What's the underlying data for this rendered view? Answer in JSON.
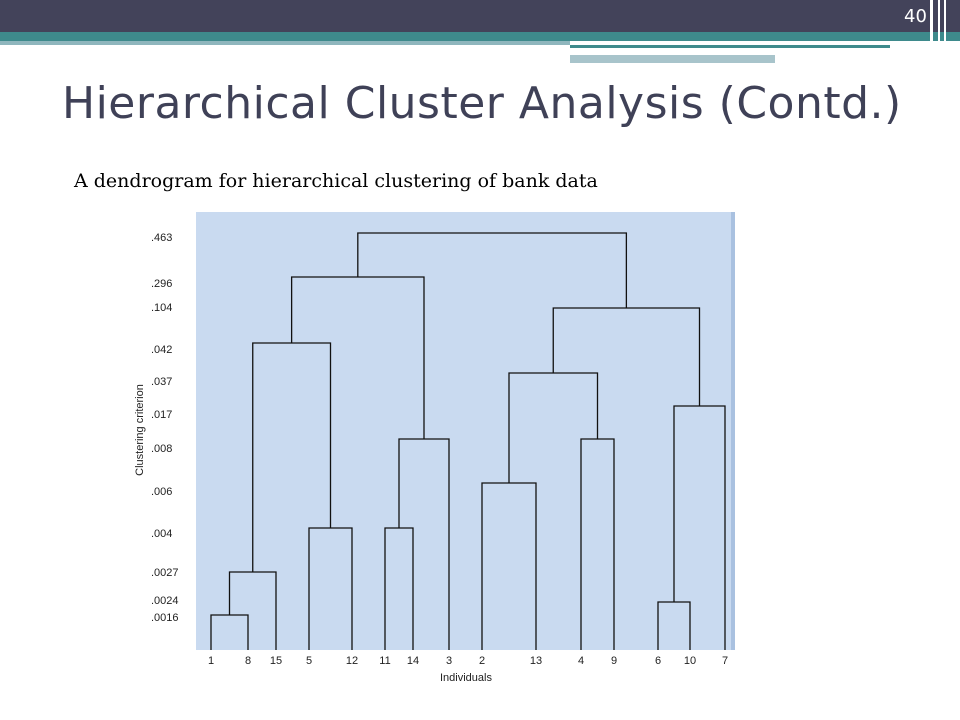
{
  "slide_number": "40",
  "title": "Hierarchical Cluster Analysis (Contd.)",
  "subtitle": "A dendrogram for hierarchical clustering of bank data",
  "dendrogram": {
    "y_label": "Clustering criterion",
    "x_label": "Individuals",
    "yticks": [
      {
        "value": 0.463,
        "label": ".463"
      },
      {
        "value": 0.296,
        "label": ".296"
      },
      {
        "value": 0.104,
        "label": ".104"
      },
      {
        "value": 0.042,
        "label": ".042"
      },
      {
        "value": 0.037,
        "label": ".037"
      },
      {
        "value": 0.017,
        "label": ".017"
      },
      {
        "value": 0.008,
        "label": ".008"
      },
      {
        "value": 0.006,
        "label": ".006"
      },
      {
        "value": 0.004,
        "label": ".004"
      },
      {
        "value": 0.0027,
        "label": ".0027"
      },
      {
        "value": 0.0024,
        "label": ".0024"
      },
      {
        "value": 0.0016,
        "label": ".0016"
      }
    ],
    "leaves": [
      "1",
      "8",
      "15",
      "5",
      "12",
      "11",
      "14",
      "3",
      "2",
      "13",
      "4",
      "9",
      "6",
      "10",
      "7"
    ],
    "merges": [
      {
        "height": 0.0016
      },
      {
        "height": 0.0027
      },
      {
        "height": 0.004
      },
      {
        "height": 0.004
      },
      {
        "height": 0.0024
      },
      {
        "height": 0.006
      },
      {
        "height": 0.008
      },
      {
        "height": 0.008
      },
      {
        "height": 0.017
      },
      {
        "height": 0.037
      },
      {
        "height": 0.042
      },
      {
        "height": 0.104
      },
      {
        "height": 0.296
      },
      {
        "height": 0.463
      }
    ]
  }
}
